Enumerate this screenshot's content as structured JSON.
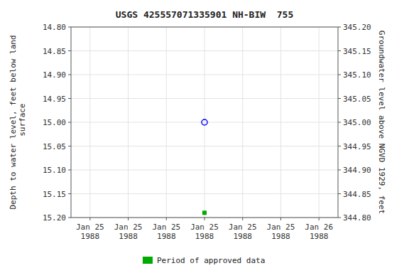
{
  "chart_data": {
    "type": "scatter",
    "title": "USGS 425557071335901 NH-BIW  755",
    "y_label": "Depth to water level, feet below land\n surface",
    "y2_label": "Groundwater level above NGVD 1929, feet",
    "categories": [
      "Jan 25\n1988",
      "Jan 25\n1988",
      "Jan 25\n1988",
      "Jan 25\n1988",
      "Jan 25\n1988",
      "Jan 25\n1988",
      "Jan 26\n1988"
    ],
    "series": [
      {
        "color": "#0000ff",
        "marker": "open-circle",
        "values": [
          null,
          null,
          null,
          15.0,
          null,
          null,
          null
        ]
      },
      {
        "name": "Period of approved data",
        "color": "#00aa00",
        "marker": "square",
        "values": [
          null,
          null,
          null,
          15.19,
          null,
          null,
          null
        ]
      }
    ],
    "ylim": [
      15.2,
      14.8
    ],
    "yticks": [
      {
        "value": 14.8,
        "label": "14.80"
      },
      14.85,
      {
        "value": 14.9,
        "label": "14.90"
      },
      14.95,
      {
        "value": 15.0,
        "label": "15.00"
      },
      15.05,
      {
        "value": 15.1,
        "label": "15.10"
      },
      15.15,
      {
        "value": 15.2,
        "label": "15.20"
      }
    ],
    "y2lim": [
      344.8,
      345.2
    ],
    "y2ticks": [
      {
        "value": 344.8,
        "label": "344.80"
      },
      344.85,
      {
        "value": 344.9,
        "label": "344.90"
      },
      344.95,
      {
        "value": 345.0,
        "label": "345.00"
      },
      345.05,
      {
        "value": 345.1,
        "label": "345.10"
      },
      345.15,
      {
        "value": 345.2,
        "label": "345.20"
      }
    ],
    "grid": true,
    "legend": "bottom"
  }
}
